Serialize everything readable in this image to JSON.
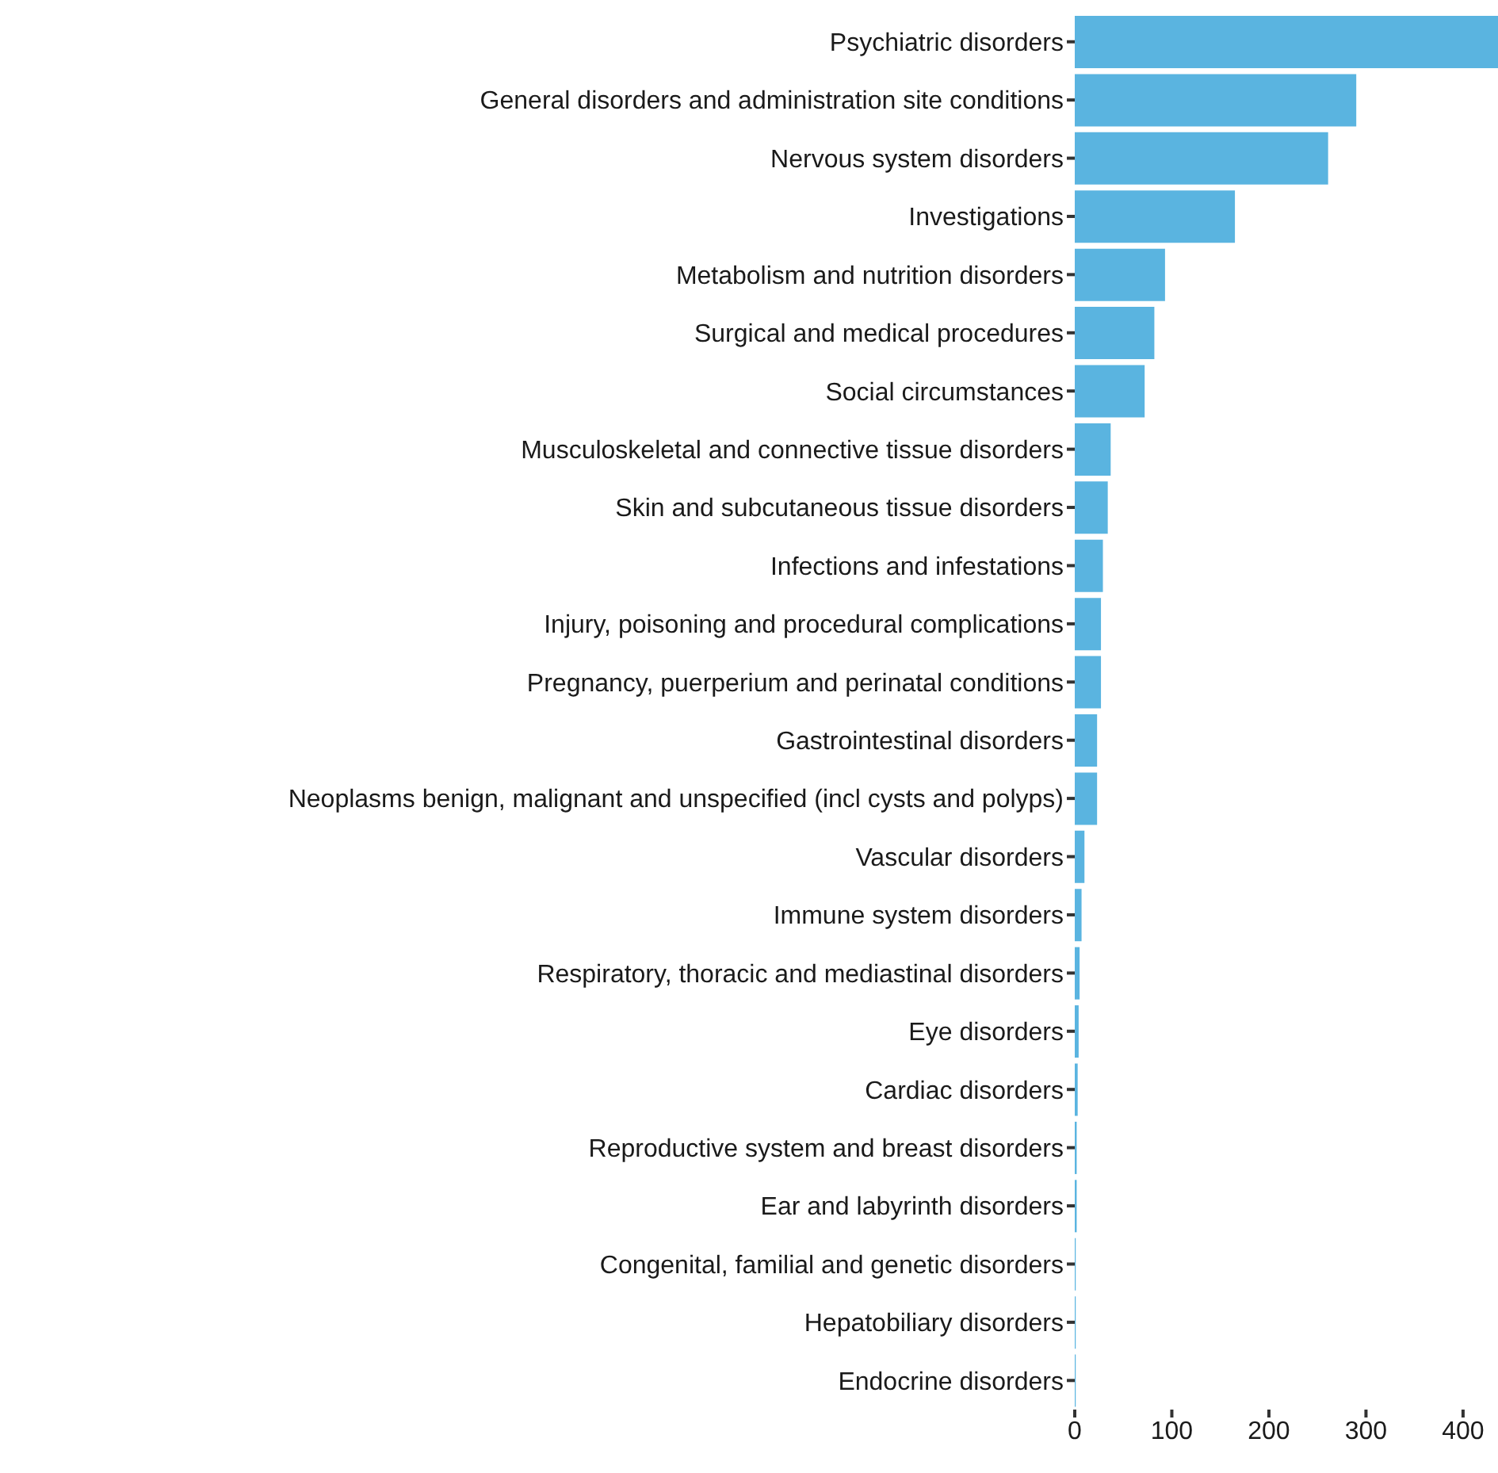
{
  "chart_data": {
    "type": "bar",
    "orientation": "horizontal",
    "categories": [
      "Psychiatric disorders",
      "General disorders and administration site conditions",
      "Nervous system disorders",
      "Investigations",
      "Metabolism and nutrition disorders",
      "Surgical and medical procedures",
      "Social circumstances",
      "Musculoskeletal and connective tissue disorders",
      "Skin and subcutaneous tissue disorders",
      "Infections and infestations",
      "Injury, poisoning and procedural complications",
      "Pregnancy, puerperium and perinatal conditions",
      "Gastrointestinal disorders",
      "Neoplasms benign, malignant and unspecified (incl cysts and polyps)",
      "Vascular disorders",
      "Immune system disorders",
      "Respiratory, thoracic and mediastinal disorders",
      "Eye disorders",
      "Cardiac disorders",
      "Reproductive system and breast disorders",
      "Ear and labyrinth disorders",
      "Congenital, familial and genetic disorders",
      "Hepatobiliary disorders",
      "Endocrine disorders"
    ],
    "values": [
      436,
      290,
      261,
      165,
      93,
      82,
      72,
      37,
      34,
      29,
      27,
      27,
      23,
      23,
      10,
      7,
      5,
      4,
      3,
      2,
      2,
      1,
      1,
      1
    ],
    "color": "#5ab4e0",
    "xlim": [
      0,
      436
    ],
    "xticks": [
      0,
      100,
      200,
      300,
      400
    ],
    "grid": false,
    "legend": false
  }
}
